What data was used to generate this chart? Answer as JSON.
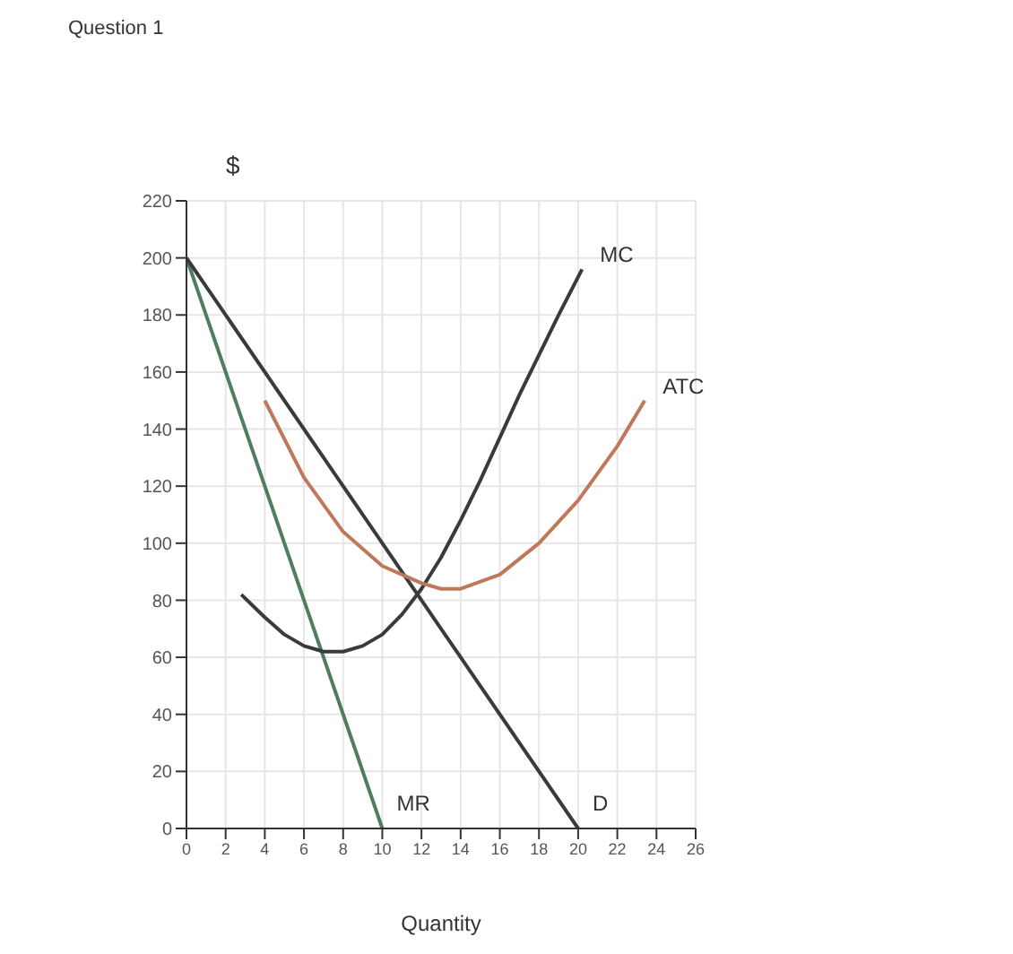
{
  "chart_data": {
    "type": "line",
    "title": "Question 1",
    "xlabel": "Quantity",
    "ylabel": "$",
    "xlim": [
      0,
      26
    ],
    "xticks": [
      0,
      2,
      4,
      6,
      8,
      10,
      12,
      14,
      16,
      18,
      20,
      22,
      24,
      26
    ],
    "ylim": [
      0,
      220
    ],
    "yticks": [
      0,
      20,
      40,
      60,
      80,
      100,
      120,
      140,
      160,
      180,
      200,
      220
    ],
    "grid": true,
    "legend": false,
    "series": [
      {
        "name": "MR",
        "color": "#4f7d60",
        "x": [
          0,
          10
        ],
        "values": [
          200,
          0
        ]
      },
      {
        "name": "D",
        "color": "#3a3a3a",
        "x": [
          0,
          20
        ],
        "values": [
          200,
          0
        ]
      },
      {
        "name": "MC",
        "color": "#3a3a3a",
        "x": [
          2.8,
          4,
          5,
          6,
          7,
          8,
          9,
          10,
          11,
          12,
          13,
          14,
          15,
          16,
          17,
          18,
          19,
          20.2
        ],
        "values": [
          82,
          74,
          68,
          64,
          62,
          62,
          64,
          68,
          75,
          84,
          95,
          108,
          122,
          137,
          152,
          166,
          180,
          196
        ]
      },
      {
        "name": "ATC",
        "color": "#c0785a",
        "x": [
          4,
          6,
          8,
          10,
          12,
          13,
          14,
          16,
          18,
          20,
          22,
          23.4
        ],
        "values": [
          150,
          123,
          104,
          92,
          86,
          84,
          84,
          89,
          100,
          115,
          134,
          150
        ]
      }
    ]
  }
}
